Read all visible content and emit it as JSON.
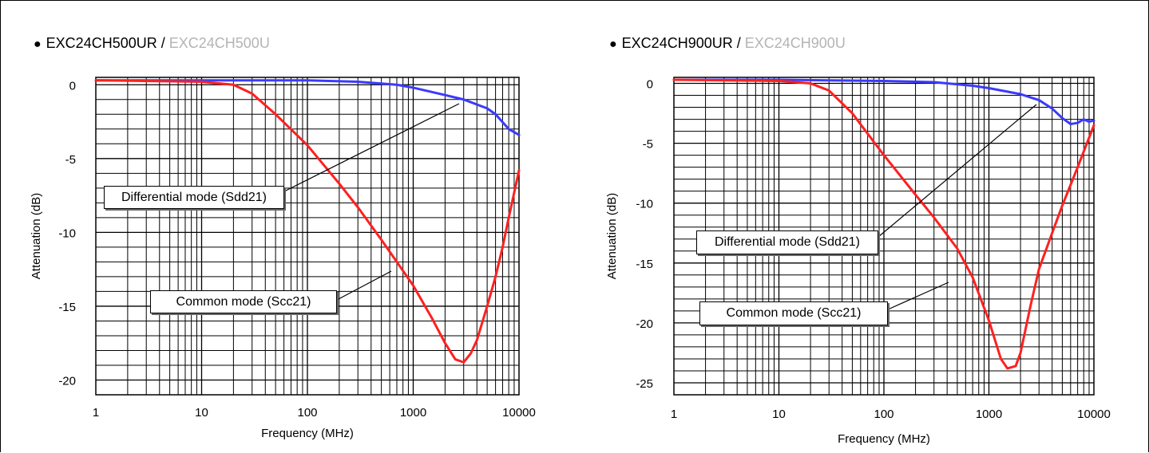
{
  "charts": [
    {
      "title_main": "EXC24CH500UR",
      "title_sep": " / ",
      "title_sub": "EXC24CH500U",
      "bullet": "●",
      "callouts": {
        "differential": "Differential mode (Sdd21)",
        "common": "Common mode (Scc21)"
      }
    },
    {
      "title_main": "EXC24CH900UR",
      "title_sep": " / ",
      "title_sub": "EXC24CH900U",
      "bullet": "●",
      "callouts": {
        "differential": "Differential mode (Sdd21)",
        "common": "Common mode (Scc21)"
      }
    }
  ],
  "chart_data": [
    {
      "type": "line",
      "xscale": "log",
      "xlim": [
        1,
        10000
      ],
      "ylim": [
        -21,
        0.5
      ],
      "xticks": [
        "1",
        "10",
        "100",
        "1000",
        "10000"
      ],
      "xtick_values": [
        1,
        10,
        100,
        1000,
        10000
      ],
      "yticks": [
        "0",
        "-5",
        "-10",
        "-15",
        "-20"
      ],
      "ytick_values": [
        0,
        -5,
        -10,
        -15,
        -20
      ],
      "xlabel": "Frequency (MHz)",
      "ylabel": "Attenuation (dB)",
      "grid": true,
      "series": [
        {
          "name": "Differential mode (Sdd21)",
          "color": "#3a3aff",
          "x": [
            1,
            10,
            100,
            300,
            700,
            1000,
            2000,
            3000,
            5000,
            6000,
            8000,
            10000
          ],
          "y": [
            0.3,
            0.3,
            0.3,
            0.2,
            0.0,
            -0.2,
            -0.7,
            -1.0,
            -1.6,
            -2.0,
            -3.0,
            -3.4
          ]
        },
        {
          "name": "Common mode (Scc21)",
          "color": "#ff2020",
          "x": [
            1,
            10,
            20,
            30,
            50,
            100,
            200,
            300,
            500,
            700,
            1000,
            1500,
            2000,
            2500,
            3000,
            3500,
            4000,
            5000,
            6000,
            7000,
            8000,
            10000
          ],
          "y": [
            0.3,
            0.2,
            0.0,
            -0.6,
            -2.0,
            -4.1,
            -6.7,
            -8.3,
            -10.5,
            -12.0,
            -13.6,
            -15.8,
            -17.5,
            -18.6,
            -18.8,
            -18.2,
            -17.3,
            -15.0,
            -13.0,
            -11.0,
            -9.0,
            -5.8
          ]
        }
      ]
    },
    {
      "type": "line",
      "xscale": "log",
      "xlim": [
        1,
        10000
      ],
      "ylim": [
        -26,
        0.5
      ],
      "xticks": [
        "1",
        "10",
        "100",
        "1000",
        "10000"
      ],
      "xtick_values": [
        1,
        10,
        100,
        1000,
        10000
      ],
      "yticks": [
        "0",
        "-5",
        "-10",
        "-15",
        "-20",
        "-25"
      ],
      "ytick_values": [
        0,
        -5,
        -10,
        -15,
        -20,
        -25
      ],
      "xlabel": "Frequency (MHz)",
      "ylabel": "Attenuation (dB)",
      "grid": true,
      "series": [
        {
          "name": "Differential mode (Sdd21)",
          "color": "#3a3aff",
          "x": [
            1,
            10,
            100,
            300,
            700,
            1000,
            2000,
            3000,
            4000,
            5000,
            6000,
            7000,
            8000,
            9000,
            10000
          ],
          "y": [
            0.3,
            0.3,
            0.2,
            0.1,
            -0.2,
            -0.4,
            -0.9,
            -1.4,
            -2.1,
            -2.9,
            -3.4,
            -3.3,
            -3.0,
            -3.2,
            -3.1
          ]
        },
        {
          "name": "Common mode (Scc21)",
          "color": "#ff2020",
          "x": [
            1,
            10,
            20,
            30,
            50,
            100,
            200,
            300,
            500,
            700,
            1000,
            1300,
            1500,
            1800,
            2000,
            2500,
            3000,
            4000,
            5000,
            7000,
            10000
          ],
          "y": [
            0.3,
            0.2,
            0.0,
            -0.6,
            -2.5,
            -6.0,
            -9.3,
            -11.2,
            -13.8,
            -16.2,
            -19.8,
            -23.0,
            -23.8,
            -23.6,
            -22.5,
            -18.5,
            -15.5,
            -12.5,
            -10.2,
            -7.0,
            -3.5
          ]
        }
      ]
    }
  ]
}
